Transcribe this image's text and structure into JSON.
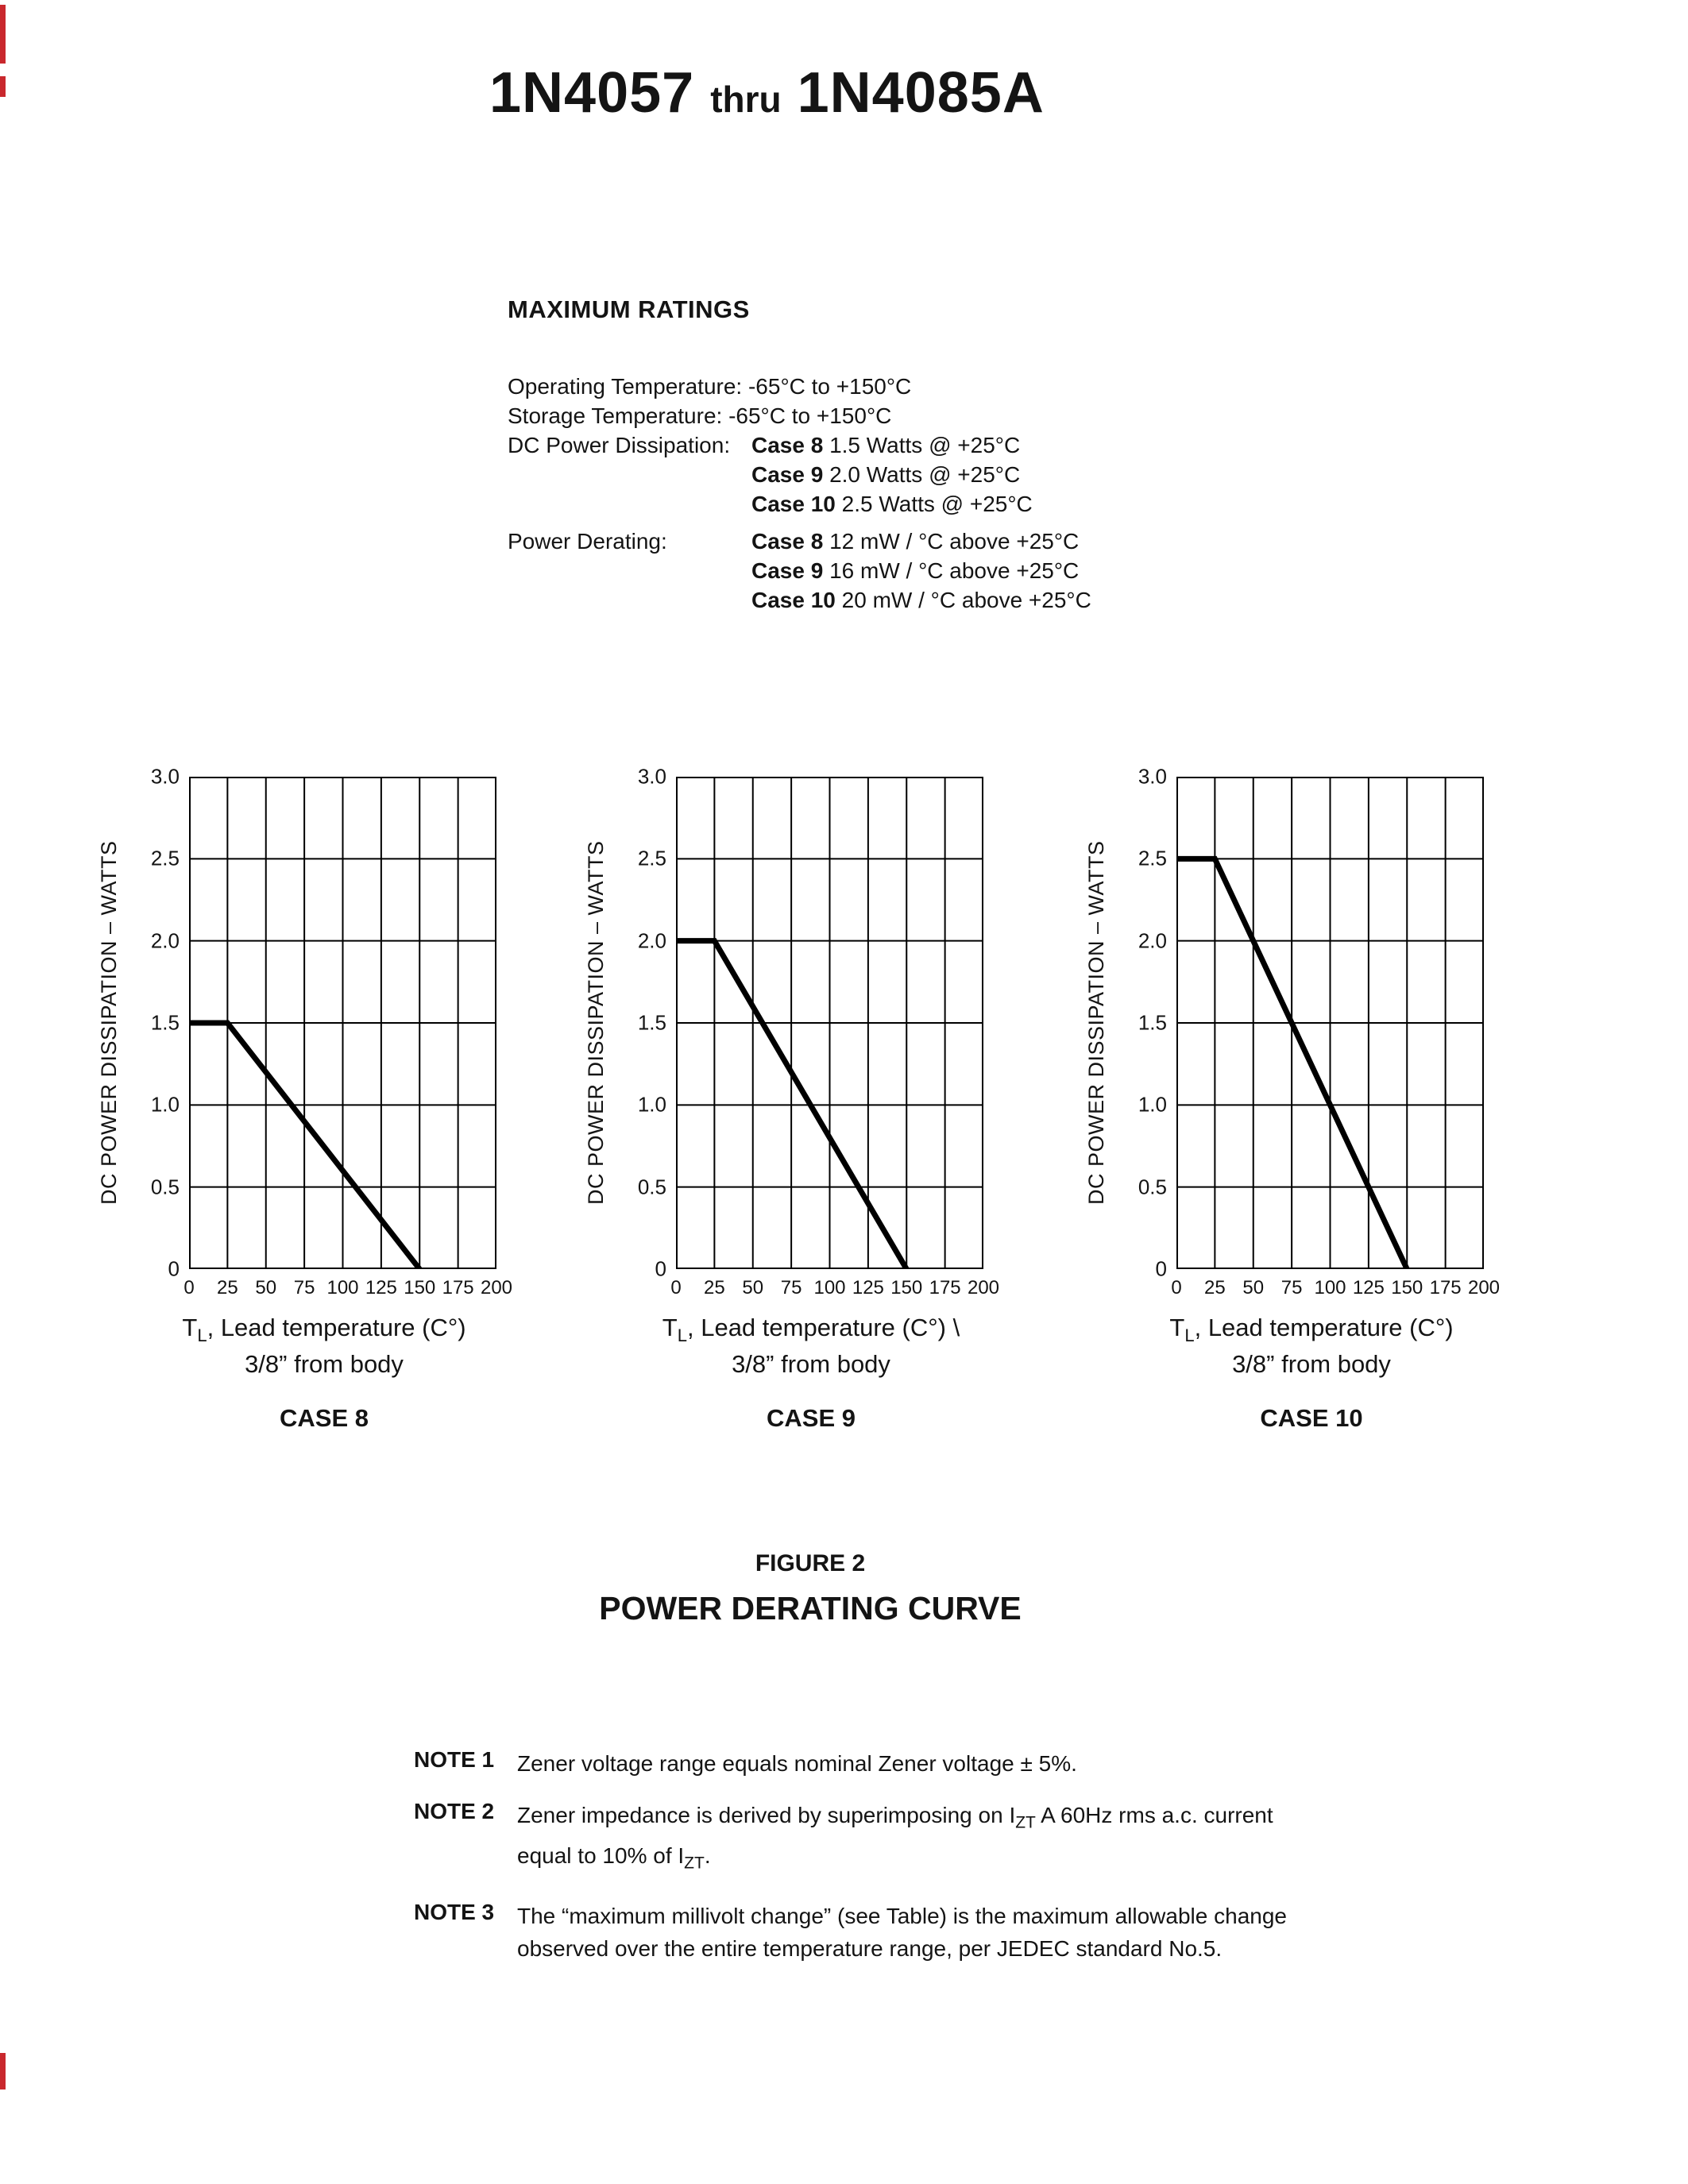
{
  "colors": {
    "page_bg": "#ffffff",
    "text": "#141414",
    "chart_line": "#000000",
    "artifact_red": "#c9282d"
  },
  "title": {
    "part1": "1N4057",
    "thru": "thru",
    "part2": "1N4085A"
  },
  "ratings": {
    "heading": "MAXIMUM RATINGS",
    "operating": "Operating Temperature: -65°C to +150°C",
    "storage": "Storage Temperature: -65°C to +150°C",
    "dissipation_label": "DC Power Dissipation:",
    "dissipation_items": [
      {
        "case": "Case 8",
        "text": " 1.5 Watts @ +25°C"
      },
      {
        "case": "Case 9",
        "text": " 2.0 Watts @ +25°C"
      },
      {
        "case": "Case 10",
        "text": " 2.5 Watts @ +25°C"
      }
    ],
    "derating_label": "Power Derating:",
    "derating_items": [
      {
        "case": "Case 8",
        "text": " 12 mW / °C above +25°C"
      },
      {
        "case": "Case 9",
        "text": " 16 mW / °C above +25°C"
      },
      {
        "case": "Case 10",
        "text": " 20 mW / °C above +25°C"
      }
    ]
  },
  "chart_data": [
    {
      "type": "line",
      "case_label": "CASE 8",
      "ylabel": "DC POWER DISSIPATION – WATTS",
      "xlabel_pre": "T",
      "xlabel_sub": "L",
      "xlabel_post": ", Lead temperature (C°)",
      "xlabel_line2": "3/8” from body",
      "xlim": [
        0,
        200
      ],
      "ylim": [
        0,
        3.0
      ],
      "xticks": [
        0,
        25,
        50,
        75,
        100,
        125,
        150,
        175,
        200
      ],
      "yticks": [
        0,
        0.5,
        1.0,
        1.5,
        2.0,
        2.5,
        3.0
      ],
      "xtick_labels": [
        "0",
        "25",
        "50",
        "75",
        "100",
        "125",
        "150",
        "175",
        "200"
      ],
      "ytick_labels": [
        "3.0",
        "2.5",
        "2.0",
        "1.5",
        "1.0",
        "0.5",
        "0"
      ],
      "points": [
        [
          0,
          1.5
        ],
        [
          25,
          1.5
        ],
        [
          150,
          0
        ]
      ],
      "grid": true
    },
    {
      "type": "line",
      "case_label": "CASE 9",
      "ylabel": "DC POWER DISSIPATION – WATTS",
      "xlabel_pre": "T",
      "xlabel_sub": "L",
      "xlabel_post": ", Lead temperature (C°)  \\",
      "xlabel_line2": "3/8” from body",
      "xlim": [
        0,
        200
      ],
      "ylim": [
        0,
        3.0
      ],
      "xticks": [
        0,
        25,
        50,
        75,
        100,
        125,
        150,
        175,
        200
      ],
      "yticks": [
        0,
        0.5,
        1.0,
        1.5,
        2.0,
        2.5,
        3.0
      ],
      "xtick_labels": [
        "0",
        "25",
        "50",
        "75",
        "100",
        "125",
        "150",
        "175",
        "200"
      ],
      "ytick_labels": [
        "3.0",
        "2.5",
        "2.0",
        "1.5",
        "1.0",
        "0.5",
        "0"
      ],
      "points": [
        [
          0,
          2.0
        ],
        [
          25,
          2.0
        ],
        [
          150,
          0
        ]
      ],
      "grid": true
    },
    {
      "type": "line",
      "case_label": "CASE 10",
      "ylabel": "DC POWER DISSIPATION – WATTS",
      "xlabel_pre": "T",
      "xlabel_sub": "L",
      "xlabel_post": ", Lead temperature (C°)",
      "xlabel_line2": "3/8” from body",
      "xlim": [
        0,
        200
      ],
      "ylim": [
        0,
        3.0
      ],
      "xticks": [
        0,
        25,
        50,
        75,
        100,
        125,
        150,
        175,
        200
      ],
      "yticks": [
        0,
        0.5,
        1.0,
        1.5,
        2.0,
        2.5,
        3.0
      ],
      "xtick_labels": [
        "0",
        "25",
        "50",
        "75",
        "100",
        "125",
        "150",
        "175",
        "200"
      ],
      "ytick_labels": [
        "3.0",
        "2.5",
        "2.0",
        "1.5",
        "1.0",
        "0.5",
        "0"
      ],
      "points": [
        [
          0,
          2.5
        ],
        [
          25,
          2.5
        ],
        [
          150,
          0
        ]
      ],
      "grid": true
    }
  ],
  "figure": {
    "label": "FIGURE 2",
    "title": "POWER DERATING CURVE"
  },
  "notes": {
    "n1_label": "NOTE 1",
    "n1_text": "Zener voltage range equals nominal Zener voltage ± 5%.",
    "n2_label": "NOTE 2",
    "n2_l1_pre": "Zener impedance is derived by superimposing on I",
    "n2_l1_sub": "ZT",
    "n2_l1_post": " A 60Hz rms a.c. current",
    "n2_l2_pre": "equal to 10% of I",
    "n2_l2_sub": "ZT",
    "n2_l2_post": ".",
    "n3_label": "NOTE 3",
    "n3_l1": "The “maximum millivolt change” (see Table) is the maximum allowable change",
    "n3_l2": "observed over the entire temperature range, per JEDEC standard No.5."
  }
}
